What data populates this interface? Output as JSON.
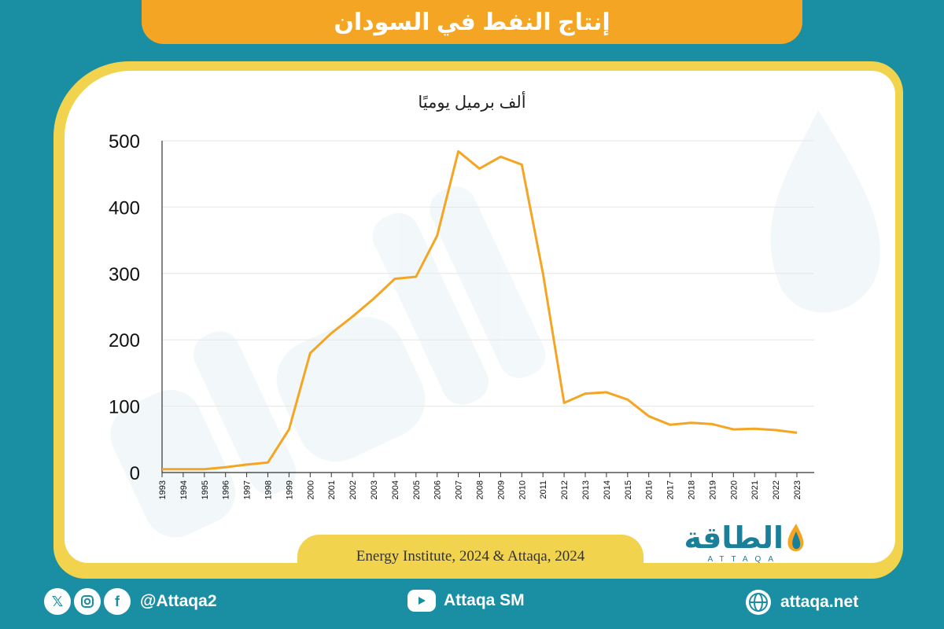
{
  "title": "إنتاج النفط في السودان",
  "source": "Energy Institute, 2024 & Attaqa, 2024",
  "logo": {
    "arabic": "الطاقة",
    "latin": "ATTAQA"
  },
  "footer": {
    "social_handle": "@Attaqa2",
    "youtube": "Attaqa SM",
    "website": "attaqa.net",
    "icons": [
      "x-icon",
      "instagram-icon",
      "facebook-icon",
      "youtube-icon",
      "globe-icon"
    ]
  },
  "colors": {
    "line": "#f5a524",
    "background": "#1a8fa4",
    "title_bar": "#f5a524",
    "frame": "#f2d34d"
  },
  "chart_data": {
    "type": "line",
    "ylabel": "ألف برميل يوميًا",
    "ylim": [
      0,
      500
    ],
    "yticks": [
      0,
      100,
      200,
      300,
      400,
      500
    ],
    "grid": true,
    "x": [
      "1993",
      "1994",
      "1995",
      "1996",
      "1997",
      "1998",
      "1999",
      "2000",
      "2001",
      "2002",
      "2003",
      "2004",
      "2005",
      "2006",
      "2007",
      "2008",
      "2009",
      "2010",
      "2011",
      "2012",
      "2013",
      "2014",
      "2015",
      "2016",
      "2017",
      "2018",
      "2019",
      "2020",
      "2021",
      "2022",
      "2023"
    ],
    "series": [
      {
        "values": [
          5,
          5,
          5,
          8,
          12,
          15,
          65,
          180,
          210,
          235,
          262,
          292,
          295,
          357,
          484,
          458,
          476,
          464,
          300,
          105,
          119,
          121,
          110,
          85,
          72,
          75,
          73,
          65,
          66,
          64,
          60
        ]
      }
    ]
  }
}
